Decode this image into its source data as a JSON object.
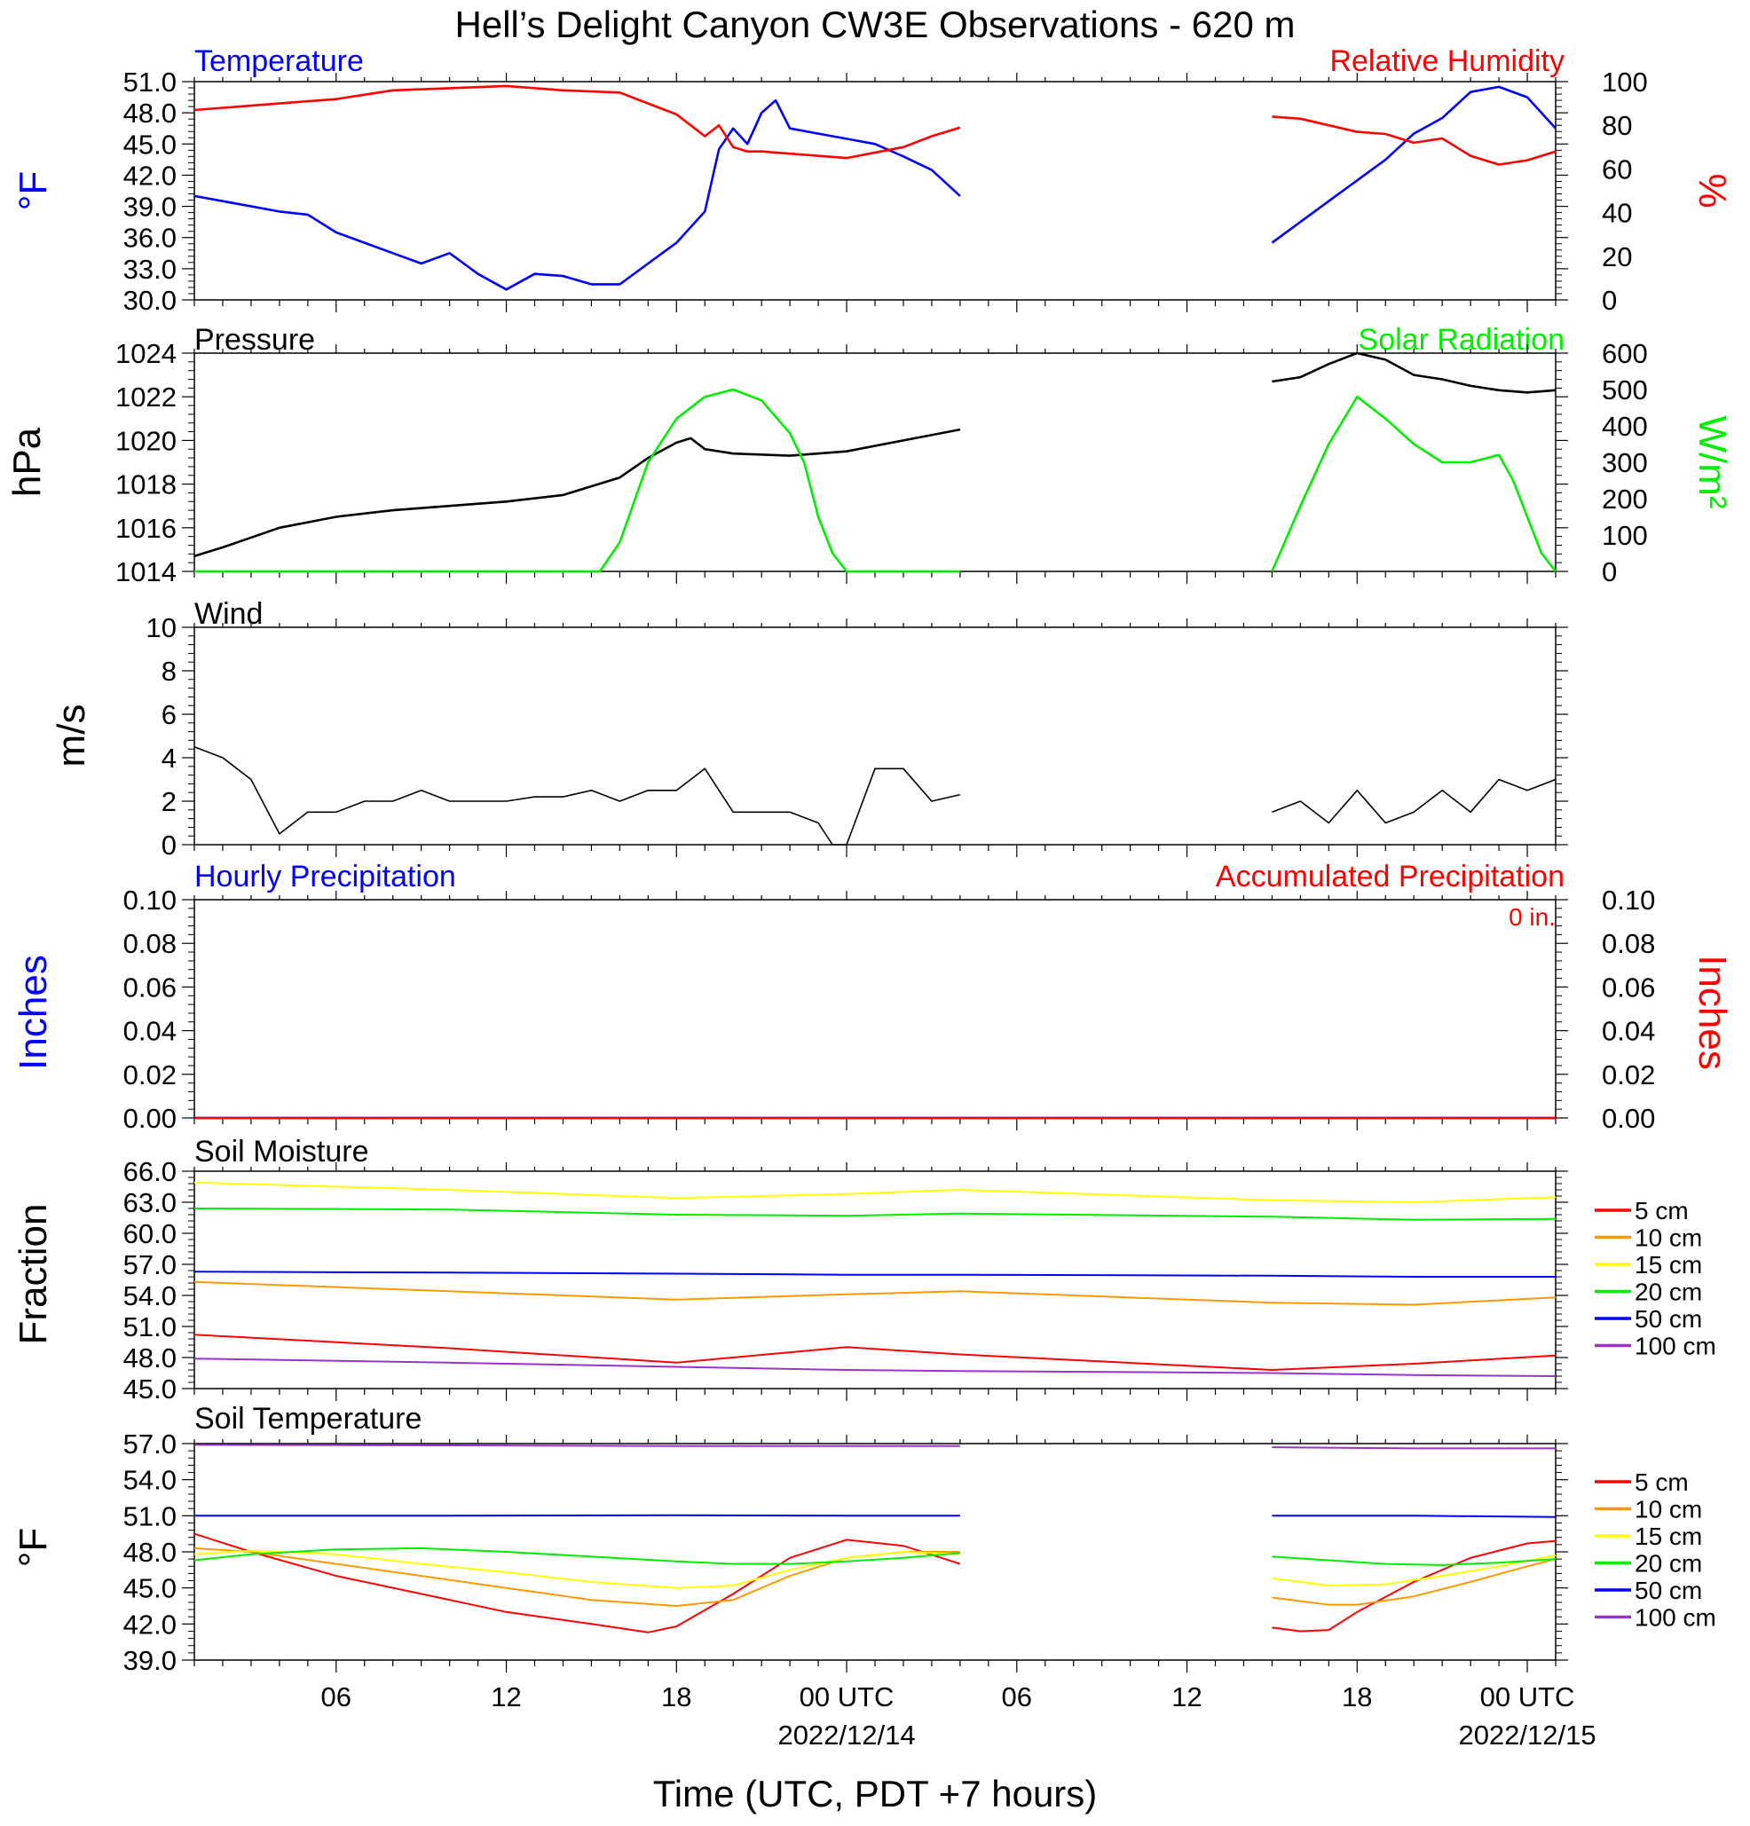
{
  "title": "Hell’s Delight Canyon CW3E Observations - 620 m",
  "xlabel": "Time (UTC, PDT +7 hours)",
  "time_axis": {
    "start_hour": 1,
    "end_hour": 49,
    "major_ticks": [
      6,
      12,
      18,
      24,
      30,
      36,
      42,
      48
    ],
    "tick_labels": [
      "06",
      "12",
      "18",
      "00 UTC",
      "06",
      "12",
      "18",
      "00 UTC"
    ],
    "date_labels": [
      {
        "hour": 24,
        "text": "2022/12/14"
      },
      {
        "hour": 48,
        "text": "2022/12/15"
      }
    ],
    "data_gap_hours": [
      28,
      39
    ]
  },
  "colors": {
    "temperature": "#0000ff",
    "humidity": "#ff0000",
    "pressure": "#000000",
    "solar": "#00ee00",
    "wind": "#000000",
    "barb": "#ff0000",
    "precip_hourly": "#0000ff",
    "precip_accum": "#ff0000"
  },
  "panels": {
    "temp_rh": {
      "left_title": "Temperature",
      "right_title": "Relative Humidity",
      "left_unit": "°F",
      "right_unit": "%",
      "left_ticks": [
        "51.0",
        "48.0",
        "45.0",
        "42.0",
        "39.0",
        "36.0",
        "33.0",
        "30.0"
      ],
      "right_ticks": [
        "100",
        "80",
        "60",
        "40",
        "20",
        "0"
      ]
    },
    "pressure_solar": {
      "left_title": "Pressure",
      "right_title": "Solar Radiation",
      "left_unit": "hPa",
      "right_unit": "W/m²",
      "left_ticks": [
        "1024",
        "1022",
        "1020",
        "1018",
        "1016",
        "1014"
      ],
      "right_ticks": [
        "600",
        "500",
        "400",
        "300",
        "200",
        "100",
        "0"
      ]
    },
    "wind": {
      "left_title": "Wind",
      "left_unit": "m/s",
      "left_ticks": [
        "10",
        "8",
        "6",
        "4",
        "2",
        "0"
      ]
    },
    "precip": {
      "left_title": "Hourly Precipitation",
      "right_title": "Accumulated Precipitation",
      "left_unit": "Inches",
      "right_unit": "Inches",
      "total": "0 in.",
      "left_ticks": [
        "0.10",
        "0.08",
        "0.06",
        "0.04",
        "0.02",
        "0.00"
      ],
      "right_ticks": [
        "0.10",
        "0.08",
        "0.06",
        "0.04",
        "0.02",
        "0.00"
      ]
    },
    "soil_moisture": {
      "left_title": "Soil Moisture",
      "left_unit": "Fraction",
      "left_ticks": [
        "66.0",
        "63.0",
        "60.0",
        "57.0",
        "54.0",
        "51.0",
        "48.0",
        "45.0"
      ],
      "legend": [
        "5 cm",
        "10 cm",
        "15 cm",
        "20 cm",
        "50 cm",
        "100 cm"
      ]
    },
    "soil_temp": {
      "left_title": "Soil Temperature",
      "left_unit": "°F",
      "left_ticks": [
        "57.0",
        "54.0",
        "51.0",
        "48.0",
        "45.0",
        "42.0",
        "39.0"
      ],
      "legend": [
        "5 cm",
        "10 cm",
        "15 cm",
        "20 cm",
        "50 cm",
        "100 cm"
      ]
    }
  },
  "chart_data": [
    {
      "type": "line",
      "title": "Temperature / Relative Humidity",
      "ylabel": "°F",
      "y2label": "%",
      "ylim": [
        30,
        51
      ],
      "y2lim": [
        0,
        100
      ],
      "series": [
        {
          "name": "Temperature",
          "axis": "left",
          "x": [
            1,
            2,
            4,
            5,
            6,
            7,
            8,
            9,
            10,
            11,
            12,
            13,
            14,
            15,
            16,
            17,
            18,
            19,
            19.5,
            20,
            20.5,
            21,
            21.5,
            22,
            23,
            24,
            25,
            26,
            27,
            28
          ],
          "y": [
            40,
            39.5,
            38.5,
            38.2,
            36.5,
            35.5,
            34.5,
            33.5,
            34.5,
            32.5,
            31,
            32.5,
            32.3,
            31.5,
            31.5,
            33.5,
            35.5,
            38.5,
            44.5,
            46.5,
            45,
            48,
            49.2,
            46.5,
            46,
            45.5,
            45,
            43.8,
            42.5,
            40
          ]
        },
        {
          "name": "Temperature",
          "axis": "left",
          "x": [
            39,
            40,
            41,
            42,
            43,
            44,
            45,
            46,
            47,
            48,
            49
          ],
          "y": [
            35.5,
            37.5,
            39.5,
            41.5,
            43.5,
            46,
            47.5,
            50,
            50.5,
            49.5,
            46.5
          ]
        },
        {
          "name": "Relative Humidity",
          "axis": "right",
          "x": [
            1,
            2,
            4,
            6,
            8,
            10,
            12,
            14,
            16,
            17,
            18,
            18.5,
            19,
            19.5,
            20,
            20.5,
            21,
            22,
            24,
            26,
            27,
            28
          ],
          "y": [
            87,
            88,
            90,
            92,
            96,
            97,
            98,
            96,
            95,
            90,
            85,
            80,
            75,
            80,
            70,
            68,
            68,
            67,
            65,
            70,
            75,
            79
          ]
        },
        {
          "name": "Relative Humidity",
          "axis": "right",
          "x": [
            39,
            40,
            41,
            42,
            43,
            44,
            45,
            46,
            47,
            48,
            49
          ],
          "y": [
            84,
            83,
            80,
            77,
            76,
            72,
            74,
            66,
            62,
            64,
            68
          ]
        }
      ]
    },
    {
      "type": "line",
      "title": "Pressure / Solar Radiation",
      "ylabel": "hPa",
      "y2label": "W/m²",
      "ylim": [
        1014,
        1024
      ],
      "y2lim": [
        0,
        600
      ],
      "series": [
        {
          "name": "Pressure",
          "axis": "left",
          "x": [
            1,
            2,
            4,
            6,
            8,
            10,
            12,
            14,
            16,
            17,
            18,
            18.5,
            19,
            20,
            22,
            24,
            26,
            28
          ],
          "y": [
            1014.7,
            1015.1,
            1016.0,
            1016.5,
            1016.8,
            1017.0,
            1017.2,
            1017.5,
            1018.3,
            1019.2,
            1019.9,
            1020.1,
            1019.6,
            1019.4,
            1019.3,
            1019.5,
            1020.0,
            1020.5
          ]
        },
        {
          "name": "Pressure",
          "axis": "left",
          "x": [
            39,
            40,
            41,
            42,
            43,
            44,
            45,
            46,
            47,
            48,
            49
          ],
          "y": [
            1022.7,
            1022.9,
            1023.5,
            1024.0,
            1023.7,
            1023.0,
            1022.8,
            1022.5,
            1022.3,
            1022.2,
            1022.3
          ]
        },
        {
          "name": "Solar Radiation",
          "axis": "right",
          "x": [
            1,
            15.3,
            16,
            17,
            18,
            19,
            20,
            21,
            22,
            22.5,
            23,
            23.5,
            24,
            28
          ],
          "y": [
            0,
            0,
            80,
            300,
            420,
            480,
            500,
            470,
            380,
            300,
            150,
            50,
            0,
            0
          ]
        },
        {
          "name": "Solar Radiation",
          "axis": "right",
          "x": [
            39,
            40,
            41,
            42,
            43,
            44,
            45,
            46,
            47,
            47.5,
            48,
            48.5,
            49
          ],
          "y": [
            0,
            180,
            350,
            480,
            420,
            350,
            300,
            300,
            320,
            250,
            150,
            50,
            0
          ]
        }
      ]
    },
    {
      "type": "line",
      "title": "Wind",
      "ylabel": "m/s",
      "ylim": [
        0,
        10
      ],
      "series": [
        {
          "name": "Wind",
          "x": [
            1,
            2,
            3,
            4,
            5,
            6,
            7,
            8,
            9,
            10,
            11,
            12,
            13,
            14,
            15,
            16,
            17,
            18,
            19,
            20,
            21,
            22,
            23,
            23.5,
            24,
            25,
            26,
            27,
            28
          ],
          "y": [
            4.5,
            4,
            3,
            0.5,
            1.5,
            1.5,
            2,
            2,
            2.5,
            2,
            2,
            2,
            2.2,
            2.2,
            2.5,
            2,
            2.5,
            2.5,
            3.5,
            1.5,
            1.5,
            1.5,
            1,
            0,
            0,
            3.5,
            3.5,
            2,
            2.3
          ]
        },
        {
          "name": "Wind",
          "x": [
            39,
            40,
            41,
            42,
            43,
            44,
            45,
            46,
            47,
            48,
            49
          ],
          "y": [
            1.5,
            2,
            1,
            2.5,
            1,
            1.5,
            2.5,
            1.5,
            3,
            2.5,
            3
          ]
        }
      ]
    },
    {
      "type": "line",
      "title": "Precipitation",
      "ylabel": "Inches",
      "y2label": "Inches",
      "ylim": [
        0,
        0.1
      ],
      "y2lim": [
        0,
        0.1
      ],
      "series": [
        {
          "name": "Hourly Precipitation",
          "x": [
            1,
            28,
            39,
            49
          ],
          "y": [
            0,
            0,
            0,
            0
          ]
        },
        {
          "name": "Accumulated Precipitation",
          "x": [
            1,
            28,
            39,
            49
          ],
          "y": [
            0,
            0,
            0,
            0
          ]
        }
      ]
    },
    {
      "type": "line",
      "title": "Soil Moisture",
      "ylabel": "Fraction",
      "ylim": [
        45,
        66
      ],
      "series": [
        {
          "name": "5 cm",
          "x": [
            1,
            10,
            18,
            24,
            28,
            39,
            44,
            49
          ],
          "y": [
            50.2,
            48.9,
            47.5,
            49,
            48.3,
            46.8,
            47.4,
            48.2
          ]
        },
        {
          "name": "10 cm",
          "x": [
            1,
            10,
            18,
            24,
            28,
            39,
            44,
            49
          ],
          "y": [
            55.3,
            54.4,
            53.6,
            54.1,
            54.4,
            53.3,
            53.1,
            53.8
          ]
        },
        {
          "name": "15 cm",
          "x": [
            1,
            10,
            18,
            24,
            28,
            39,
            44,
            49
          ],
          "y": [
            64.9,
            64.2,
            63.4,
            63.8,
            64.2,
            63.2,
            63,
            63.5
          ]
        },
        {
          "name": "20 cm",
          "x": [
            1,
            10,
            18,
            24,
            28,
            39,
            44,
            49
          ],
          "y": [
            62.4,
            62.3,
            61.8,
            61.7,
            61.9,
            61.6,
            61.3,
            61.4
          ]
        },
        {
          "name": "50 cm",
          "x": [
            1,
            10,
            18,
            24,
            28,
            39,
            44,
            49
          ],
          "y": [
            56.3,
            56.2,
            56.1,
            56,
            56,
            55.9,
            55.8,
            55.8
          ]
        },
        {
          "name": "100 cm",
          "x": [
            1,
            10,
            18,
            24,
            28,
            39,
            44,
            49
          ],
          "y": [
            47.9,
            47.5,
            47.1,
            46.8,
            46.7,
            46.5,
            46.3,
            46.2
          ]
        }
      ]
    },
    {
      "type": "line",
      "title": "Soil Temperature",
      "ylabel": "°F",
      "ylim": [
        39,
        57
      ],
      "series": [
        {
          "name": "5 cm",
          "x": [
            1,
            3,
            6,
            9,
            12,
            15,
            17,
            18,
            20,
            22,
            24,
            26,
            28
          ],
          "y": [
            49.5,
            48,
            46,
            44.5,
            43,
            42,
            41.3,
            41.8,
            44.5,
            47.5,
            49,
            48.5,
            47
          ]
        },
        {
          "name": "5 cm",
          "x": [
            39,
            40,
            41,
            42,
            44,
            46,
            48,
            49
          ],
          "y": [
            41.7,
            41.4,
            41.5,
            43,
            45.5,
            47.5,
            48.7,
            48.9
          ]
        },
        {
          "name": "10 cm",
          "x": [
            1,
            3,
            6,
            9,
            12,
            15,
            18,
            20,
            22,
            24,
            26,
            28
          ],
          "y": [
            48.3,
            48,
            47,
            46,
            45,
            44,
            43.5,
            44,
            46,
            47.5,
            48,
            48
          ]
        },
        {
          "name": "10 cm",
          "x": [
            39,
            41,
            42,
            44,
            46,
            48,
            49
          ],
          "y": [
            44.2,
            43.6,
            43.6,
            44.3,
            45.5,
            46.8,
            47.4
          ]
        },
        {
          "name": "15 cm",
          "x": [
            1,
            3,
            6,
            9,
            12,
            15,
            18,
            20,
            22,
            24,
            26,
            28
          ],
          "y": [
            47.8,
            48.1,
            47.8,
            47,
            46.3,
            45.5,
            45,
            45.2,
            46.5,
            47.5,
            48,
            47.8
          ]
        },
        {
          "name": "15 cm",
          "x": [
            39,
            41,
            43,
            45,
            47,
            49
          ],
          "y": [
            45.8,
            45.2,
            45.3,
            46,
            46.8,
            47.7
          ]
        },
        {
          "name": "20 cm",
          "x": [
            1,
            3,
            6,
            9,
            12,
            15,
            18,
            20,
            22,
            24,
            26,
            28
          ],
          "y": [
            47.3,
            47.8,
            48.2,
            48.3,
            48,
            47.6,
            47.2,
            47,
            47,
            47.2,
            47.5,
            47.9
          ]
        },
        {
          "name": "20 cm",
          "x": [
            39,
            41,
            43,
            45,
            47,
            49
          ],
          "y": [
            47.6,
            47.3,
            47,
            46.9,
            47.1,
            47.4
          ]
        },
        {
          "name": "50 cm",
          "x": [
            1,
            10,
            18,
            24,
            28
          ],
          "y": [
            51,
            51,
            51.05,
            51,
            51
          ]
        },
        {
          "name": "50 cm",
          "x": [
            39,
            44,
            49
          ],
          "y": [
            51,
            51,
            50.9
          ]
        },
        {
          "name": "100 cm",
          "x": [
            1,
            10,
            18,
            24,
            28
          ],
          "y": [
            56.9,
            56.85,
            56.8,
            56.8,
            56.8
          ]
        },
        {
          "name": "100 cm",
          "x": [
            39,
            44,
            49
          ],
          "y": [
            56.7,
            56.6,
            56.6
          ]
        }
      ]
    }
  ],
  "legend_colors": [
    "#ff0000",
    "#ff9900",
    "#ffff00",
    "#00ee00",
    "#0000ff",
    "#9933cc"
  ]
}
